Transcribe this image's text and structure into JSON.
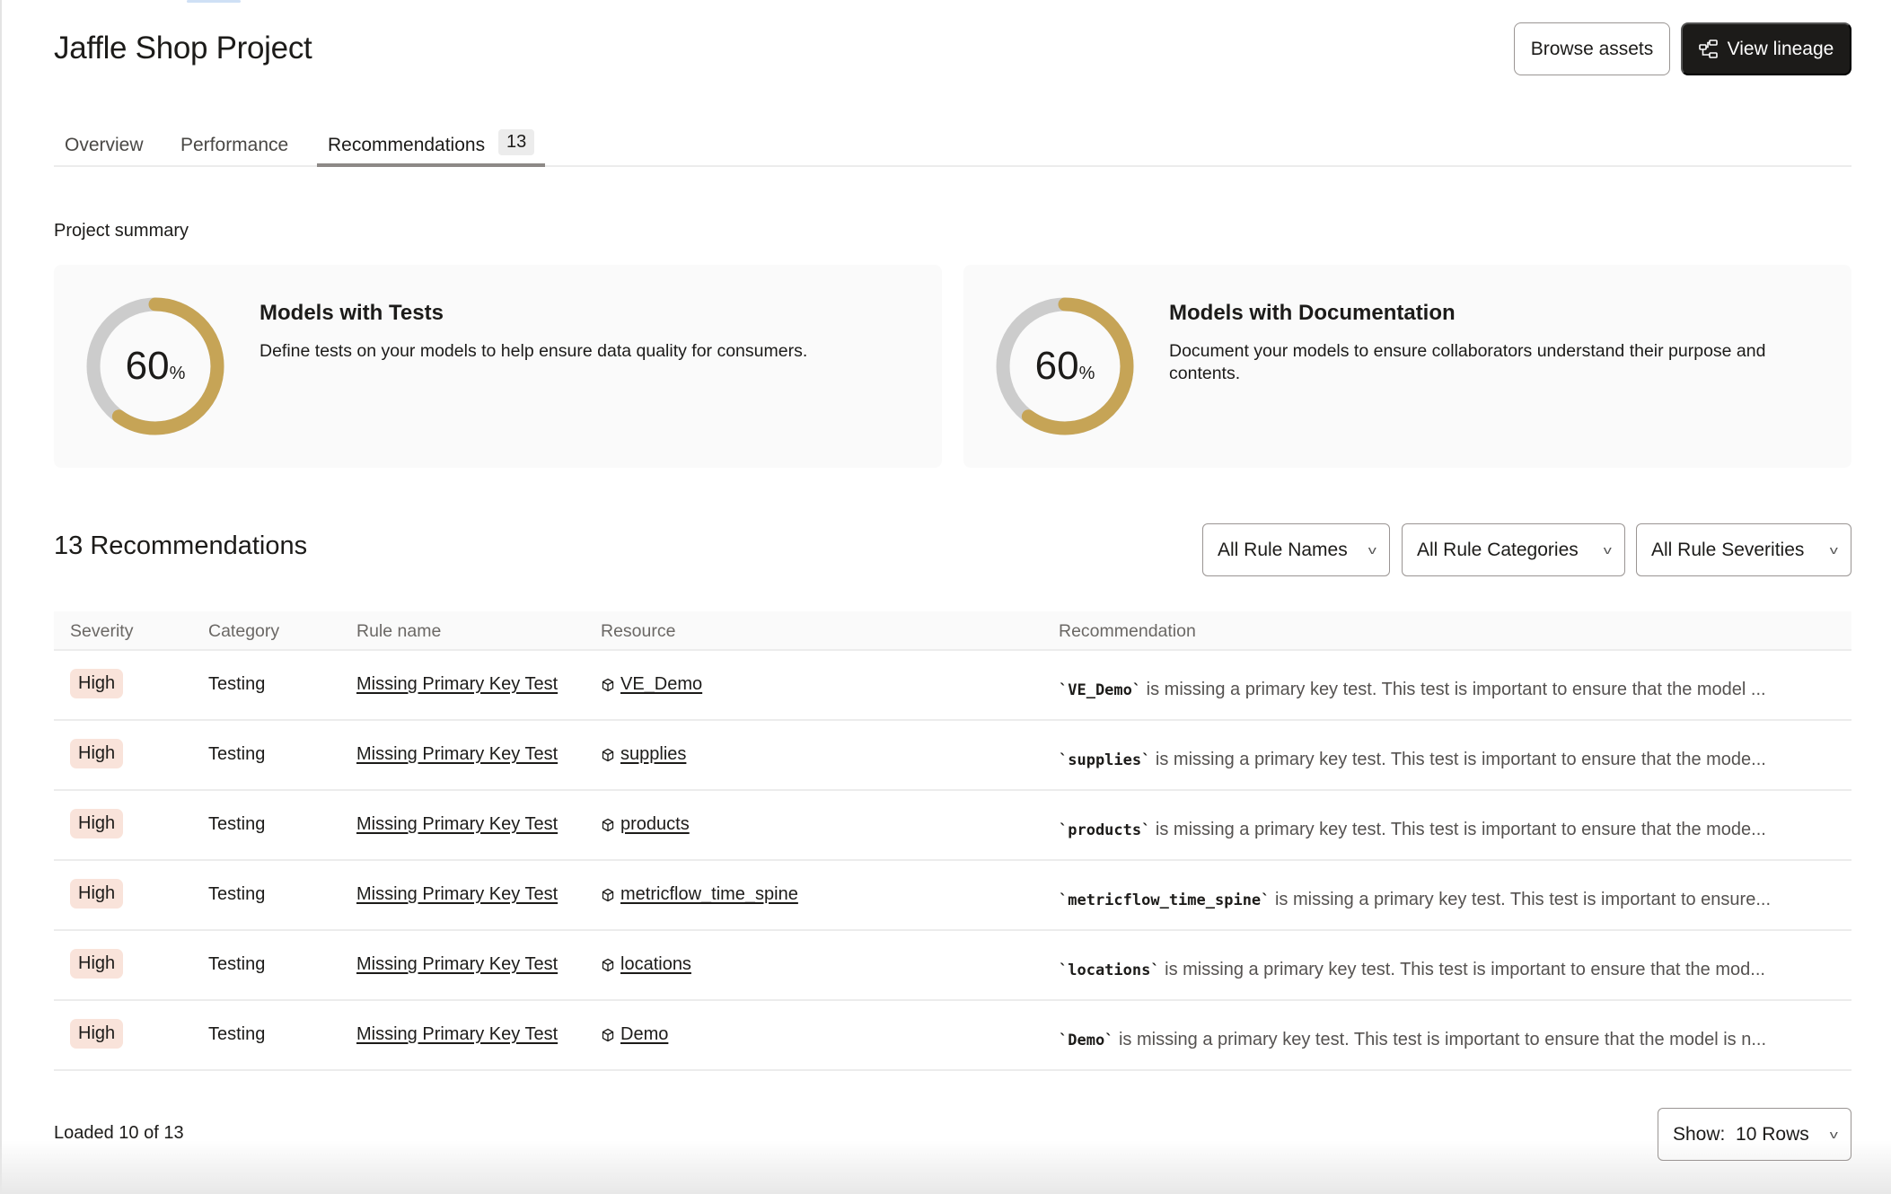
{
  "header": {
    "title": "Jaffle Shop Project",
    "browse_label": "Browse assets",
    "lineage_label": "View lineage",
    "lineage_icon": "lineage-icon"
  },
  "tabs": [
    {
      "label": "Overview"
    },
    {
      "label": "Performance"
    },
    {
      "label": "Recommendations",
      "count": "13",
      "active": true
    }
  ],
  "summary": {
    "label": "Project summary",
    "cards": [
      {
        "title": "Models with Tests",
        "description": "Define tests on your models to help ensure data quality for consumers.",
        "percent": 60,
        "percent_text": "60",
        "unit": "%"
      },
      {
        "title": "Models with Documentation",
        "description": "Document your models to ensure collaborators understand their purpose and contents.",
        "percent": 60,
        "percent_text": "60",
        "unit": "%"
      }
    ],
    "colors": {
      "progress": "#c6a456",
      "track": "#cccccc"
    }
  },
  "recommendations": {
    "title": "13 Recommendations",
    "filters": [
      {
        "label": "All Rule Names"
      },
      {
        "label": "All Rule Categories"
      },
      {
        "label": "All Rule Severities"
      }
    ],
    "columns": [
      "Severity",
      "Category",
      "Rule name",
      "Resource",
      "Recommendation"
    ],
    "rows": [
      {
        "severity": "High",
        "category": "Testing",
        "rule": "Missing Primary Key Test",
        "resource": "VE_Demo",
        "code": "`VE_Demo`",
        "text": " is missing a primary key test. This test is important to ensure that the model ..."
      },
      {
        "severity": "High",
        "category": "Testing",
        "rule": "Missing Primary Key Test",
        "resource": "supplies",
        "code": "`supplies`",
        "text": " is missing a primary key test. This test is important to ensure that the mode..."
      },
      {
        "severity": "High",
        "category": "Testing",
        "rule": "Missing Primary Key Test",
        "resource": "products",
        "code": "`products`",
        "text": " is missing a primary key test. This test is important to ensure that the mode..."
      },
      {
        "severity": "High",
        "category": "Testing",
        "rule": "Missing Primary Key Test",
        "resource": "metricflow_time_spine",
        "code": "`metricflow_time_spine`",
        "text": " is missing a primary key test. This test is important to ensure..."
      },
      {
        "severity": "High",
        "category": "Testing",
        "rule": "Missing Primary Key Test",
        "resource": "locations",
        "code": "`locations`",
        "text": " is missing a primary key test. This test is important to ensure that the mod..."
      },
      {
        "severity": "High",
        "category": "Testing",
        "rule": "Missing Primary Key Test",
        "resource": "Demo",
        "code": "`Demo`",
        "text": " is missing a primary key test. This test is important to ensure that the model is n..."
      }
    ],
    "severity_color": "#f9e3da"
  },
  "footer": {
    "loaded": "Loaded 10 of 13",
    "show_label": "Show:",
    "show_value": "10 Rows"
  }
}
